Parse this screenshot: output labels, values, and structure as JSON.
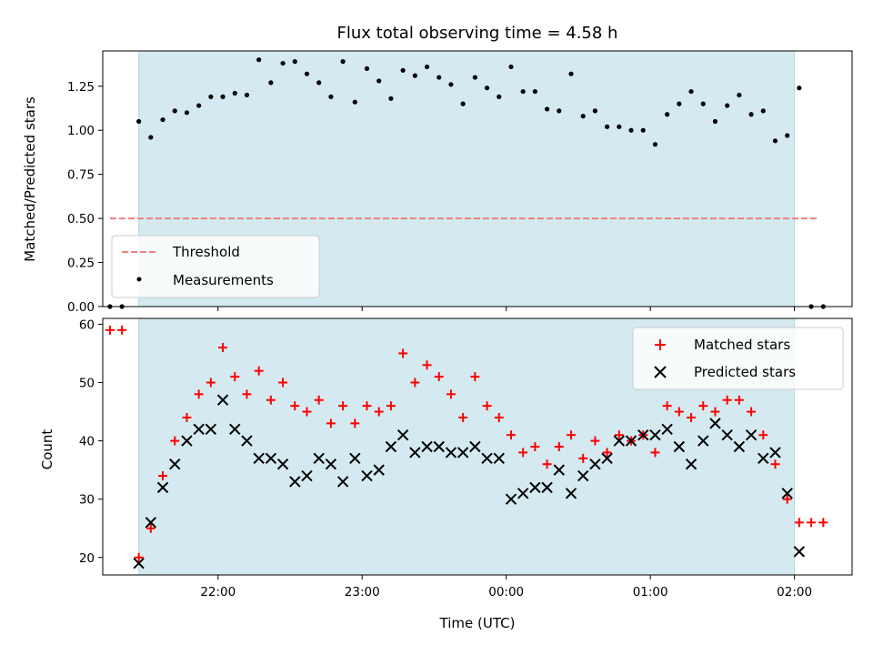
{
  "chart_data": [
    {
      "type": "scatter",
      "title": "Flux total observing time = 4.58 h",
      "xlabel": "",
      "ylabel": "Matched/Predicted stars",
      "xlim": [
        "21:12",
        "02:24"
      ],
      "ylim": [
        0,
        1.45
      ],
      "yticks": [
        "0.00",
        "0.25",
        "0.50",
        "0.75",
        "1.00",
        "1.25"
      ],
      "shaded_interval": [
        "21:27",
        "02:00"
      ],
      "legend": {
        "position": "lower-left",
        "entries": [
          "Threshold",
          "Measurements"
        ]
      },
      "threshold": {
        "name": "Threshold",
        "y": 0.5,
        "x": [
          "21:15",
          "02:10"
        ],
        "color": "#f08080"
      },
      "series": [
        {
          "name": "Measurements",
          "color": "#000000",
          "points": [
            [
              "21:15",
              0.0
            ],
            [
              "21:20",
              0.0
            ],
            [
              "21:27",
              1.05
            ],
            [
              "21:32",
              0.96
            ],
            [
              "21:37",
              1.06
            ],
            [
              "21:42",
              1.11
            ],
            [
              "21:47",
              1.1
            ],
            [
              "21:52",
              1.14
            ],
            [
              "21:57",
              1.19
            ],
            [
              "22:02",
              1.19
            ],
            [
              "22:07",
              1.21
            ],
            [
              "22:12",
              1.2
            ],
            [
              "22:17",
              1.4
            ],
            [
              "22:22",
              1.27
            ],
            [
              "22:27",
              1.38
            ],
            [
              "22:32",
              1.39
            ],
            [
              "22:37",
              1.32
            ],
            [
              "22:42",
              1.27
            ],
            [
              "22:47",
              1.19
            ],
            [
              "22:52",
              1.39
            ],
            [
              "22:57",
              1.16
            ],
            [
              "23:02",
              1.35
            ],
            [
              "23:07",
              1.28
            ],
            [
              "23:12",
              1.18
            ],
            [
              "23:17",
              1.34
            ],
            [
              "23:22",
              1.31
            ],
            [
              "23:27",
              1.36
            ],
            [
              "23:32",
              1.3
            ],
            [
              "23:37",
              1.26
            ],
            [
              "23:42",
              1.15
            ],
            [
              "23:47",
              1.3
            ],
            [
              "23:52",
              1.24
            ],
            [
              "23:57",
              1.19
            ],
            [
              "00:02",
              1.36
            ],
            [
              "00:07",
              1.22
            ],
            [
              "00:12",
              1.22
            ],
            [
              "00:17",
              1.12
            ],
            [
              "00:22",
              1.11
            ],
            [
              "00:27",
              1.32
            ],
            [
              "00:32",
              1.08
            ],
            [
              "00:37",
              1.11
            ],
            [
              "00:42",
              1.02
            ],
            [
              "00:47",
              1.02
            ],
            [
              "00:52",
              1.0
            ],
            [
              "00:57",
              1.0
            ],
            [
              "01:02",
              0.92
            ],
            [
              "01:07",
              1.09
            ],
            [
              "01:12",
              1.15
            ],
            [
              "01:17",
              1.22
            ],
            [
              "01:22",
              1.15
            ],
            [
              "01:27",
              1.05
            ],
            [
              "01:32",
              1.14
            ],
            [
              "01:37",
              1.2
            ],
            [
              "01:42",
              1.09
            ],
            [
              "01:47",
              1.11
            ],
            [
              "01:52",
              0.94
            ],
            [
              "01:57",
              0.97
            ],
            [
              "02:02",
              1.24
            ],
            [
              "02:07",
              0.0
            ],
            [
              "02:12",
              0.0
            ]
          ]
        }
      ]
    },
    {
      "type": "scatter",
      "title": "",
      "xlabel": "Time (UTC)",
      "ylabel": "Count",
      "xlim": [
        "21:12",
        "02:24"
      ],
      "ylim": [
        17,
        61
      ],
      "yticks": [
        "20",
        "30",
        "40",
        "50",
        "60"
      ],
      "xticks": [
        "22:00",
        "23:00",
        "00:00",
        "01:00",
        "02:00"
      ],
      "shaded_interval": [
        "21:27",
        "02:00"
      ],
      "legend": {
        "position": "upper-right",
        "entries": [
          "Matched stars",
          "Predicted stars"
        ]
      },
      "series": [
        {
          "name": "Matched stars",
          "marker": "+",
          "color": "#ff0000",
          "points": [
            [
              "21:15",
              59
            ],
            [
              "21:20",
              59
            ],
            [
              "21:27",
              20
            ],
            [
              "21:32",
              25
            ],
            [
              "21:37",
              34
            ],
            [
              "21:42",
              40
            ],
            [
              "21:47",
              44
            ],
            [
              "21:52",
              48
            ],
            [
              "21:57",
              50
            ],
            [
              "22:02",
              56
            ],
            [
              "22:07",
              51
            ],
            [
              "22:12",
              48
            ],
            [
              "22:17",
              52
            ],
            [
              "22:22",
              47
            ],
            [
              "22:27",
              50
            ],
            [
              "22:32",
              46
            ],
            [
              "22:37",
              45
            ],
            [
              "22:42",
              47
            ],
            [
              "22:47",
              43
            ],
            [
              "22:52",
              46
            ],
            [
              "22:57",
              43
            ],
            [
              "23:02",
              46
            ],
            [
              "23:07",
              45
            ],
            [
              "23:12",
              46
            ],
            [
              "23:17",
              55
            ],
            [
              "23:22",
              50
            ],
            [
              "23:27",
              53
            ],
            [
              "23:32",
              51
            ],
            [
              "23:37",
              48
            ],
            [
              "23:42",
              44
            ],
            [
              "23:47",
              51
            ],
            [
              "23:52",
              46
            ],
            [
              "23:57",
              44
            ],
            [
              "00:02",
              41
            ],
            [
              "00:07",
              38
            ],
            [
              "00:12",
              39
            ],
            [
              "00:17",
              36
            ],
            [
              "00:22",
              39
            ],
            [
              "00:27",
              41
            ],
            [
              "00:32",
              37
            ],
            [
              "00:37",
              40
            ],
            [
              "00:42",
              38
            ],
            [
              "00:47",
              41
            ],
            [
              "00:52",
              40
            ],
            [
              "00:57",
              41
            ],
            [
              "01:02",
              38
            ],
            [
              "01:07",
              46
            ],
            [
              "01:12",
              45
            ],
            [
              "01:17",
              44
            ],
            [
              "01:22",
              46
            ],
            [
              "01:27",
              45
            ],
            [
              "01:32",
              47
            ],
            [
              "01:37",
              47
            ],
            [
              "01:42",
              45
            ],
            [
              "01:47",
              41
            ],
            [
              "01:52",
              36
            ],
            [
              "01:57",
              30
            ],
            [
              "02:02",
              26
            ],
            [
              "02:07",
              26
            ],
            [
              "02:12",
              26
            ]
          ]
        },
        {
          "name": "Predicted stars",
          "marker": "x",
          "color": "#000000",
          "points": [
            [
              "21:27",
              19
            ],
            [
              "21:32",
              26
            ],
            [
              "21:37",
              32
            ],
            [
              "21:42",
              36
            ],
            [
              "21:47",
              40
            ],
            [
              "21:52",
              42
            ],
            [
              "21:57",
              42
            ],
            [
              "22:02",
              47
            ],
            [
              "22:07",
              42
            ],
            [
              "22:12",
              40
            ],
            [
              "22:17",
              37
            ],
            [
              "22:22",
              37
            ],
            [
              "22:27",
              36
            ],
            [
              "22:32",
              33
            ],
            [
              "22:37",
              34
            ],
            [
              "22:42",
              37
            ],
            [
              "22:47",
              36
            ],
            [
              "22:52",
              33
            ],
            [
              "22:57",
              37
            ],
            [
              "23:02",
              34
            ],
            [
              "23:07",
              35
            ],
            [
              "23:12",
              39
            ],
            [
              "23:17",
              41
            ],
            [
              "23:22",
              38
            ],
            [
              "23:27",
              39
            ],
            [
              "23:32",
              39
            ],
            [
              "23:37",
              38
            ],
            [
              "23:42",
              38
            ],
            [
              "23:47",
              39
            ],
            [
              "23:52",
              37
            ],
            [
              "23:57",
              37
            ],
            [
              "00:02",
              30
            ],
            [
              "00:07",
              31
            ],
            [
              "00:12",
              32
            ],
            [
              "00:17",
              32
            ],
            [
              "00:22",
              35
            ],
            [
              "00:27",
              31
            ],
            [
              "00:32",
              34
            ],
            [
              "00:37",
              36
            ],
            [
              "00:42",
              37
            ],
            [
              "00:47",
              40
            ],
            [
              "00:52",
              40
            ],
            [
              "00:57",
              41
            ],
            [
              "01:02",
              41
            ],
            [
              "01:07",
              42
            ],
            [
              "01:12",
              39
            ],
            [
              "01:17",
              36
            ],
            [
              "01:22",
              40
            ],
            [
              "01:27",
              43
            ],
            [
              "01:32",
              41
            ],
            [
              "01:37",
              39
            ],
            [
              "01:42",
              41
            ],
            [
              "01:47",
              37
            ],
            [
              "01:52",
              38
            ],
            [
              "01:57",
              31
            ],
            [
              "02:02",
              21
            ]
          ]
        }
      ]
    }
  ],
  "colors": {
    "shade": "#d4eaf0",
    "threshold": "#f08080",
    "matched": "#ff0000",
    "predicted": "#000000",
    "measurements": "#000000"
  }
}
